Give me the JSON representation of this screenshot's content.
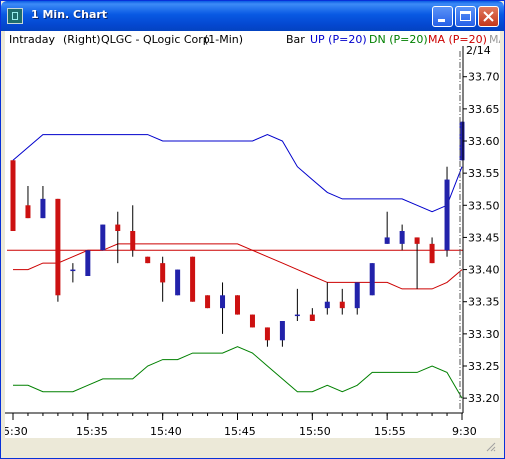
{
  "window": {
    "title": "1 Min. Chart"
  },
  "titlebar_buttons": {
    "minimize_icon": "minimize-icon",
    "maximize_icon": "maximize-icon",
    "close_icon": "close-icon"
  },
  "header": {
    "mode": "Intraday",
    "scale": "(Right)",
    "symbol_desc": "QLGC - QLogic Corp",
    "interval": "(1-Min)",
    "style": "Bar",
    "legend": [
      {
        "label": "UP (P=20)",
        "color": "#0000cc"
      },
      {
        "label": "DN (P=20)",
        "color": "#008000"
      },
      {
        "label": "MA (P=20)",
        "color": "#cc0000"
      },
      {
        "label": "MA",
        "color": "#999999"
      }
    ],
    "date_label": "2/14"
  },
  "colors": {
    "up_candle": "#2222aa",
    "down_candle": "#cc1111",
    "upper_band": "#0000cc",
    "lower_band": "#008000",
    "ma": "#cc0000",
    "ref_line": "#cc0000"
  },
  "chart_data": {
    "type": "line",
    "y_ticks": [
      "33.70",
      "33.65",
      "33.60",
      "33.55",
      "33.50",
      "33.45",
      "33.40",
      "33.35",
      "33.30",
      "33.25",
      "33.20"
    ],
    "x_ticks": [
      "5:30",
      "15:35",
      "15:40",
      "15:45",
      "15:50",
      "15:55",
      "9:30"
    ],
    "ylim": [
      33.18,
      33.74
    ],
    "ref_line": 33.43,
    "candles": [
      [
        33.57,
        33.57,
        33.46,
        33.46
      ],
      [
        33.5,
        33.53,
        33.48,
        33.48
      ],
      [
        33.48,
        33.53,
        33.48,
        33.51
      ],
      [
        33.51,
        33.51,
        33.35,
        33.36
      ],
      [
        33.4,
        33.41,
        33.38,
        33.4
      ],
      [
        33.39,
        33.43,
        33.39,
        33.43
      ],
      [
        33.43,
        33.47,
        33.43,
        33.47
      ],
      [
        33.47,
        33.49,
        33.41,
        33.46
      ],
      [
        33.46,
        33.5,
        33.42,
        33.43
      ],
      [
        33.42,
        33.42,
        33.41,
        33.41
      ],
      [
        33.41,
        33.42,
        33.35,
        33.38
      ],
      [
        33.36,
        33.4,
        33.36,
        33.4
      ],
      [
        33.42,
        33.42,
        33.35,
        33.35
      ],
      [
        33.36,
        33.36,
        33.34,
        33.34
      ],
      [
        33.34,
        33.38,
        33.3,
        33.36
      ],
      [
        33.36,
        33.36,
        33.33,
        33.33
      ],
      [
        33.33,
        33.33,
        33.31,
        33.31
      ],
      [
        33.31,
        33.31,
        33.28,
        33.29
      ],
      [
        33.29,
        33.32,
        33.28,
        33.32
      ],
      [
        33.33,
        33.37,
        33.32,
        33.33
      ],
      [
        33.33,
        33.34,
        33.32,
        33.32
      ],
      [
        33.34,
        33.38,
        33.33,
        33.35
      ],
      [
        33.35,
        33.37,
        33.33,
        33.34
      ],
      [
        33.34,
        33.38,
        33.33,
        33.38
      ],
      [
        33.36,
        33.41,
        33.36,
        33.41
      ],
      [
        33.44,
        33.49,
        33.44,
        33.45
      ],
      [
        33.44,
        33.47,
        33.43,
        33.46
      ],
      [
        33.45,
        33.45,
        33.37,
        33.44
      ],
      [
        33.44,
        33.45,
        33.41,
        33.41
      ],
      [
        33.43,
        33.56,
        33.42,
        33.54
      ],
      [
        33.57,
        33.63,
        33.57,
        33.63
      ]
    ],
    "series": [
      {
        "name": "UP (P=20)",
        "values": [
          33.57,
          33.59,
          33.61,
          33.61,
          33.61,
          33.61,
          33.61,
          33.61,
          33.61,
          33.61,
          33.6,
          33.6,
          33.6,
          33.6,
          33.6,
          33.6,
          33.6,
          33.61,
          33.6,
          33.56,
          33.54,
          33.52,
          33.51,
          33.51,
          33.51,
          33.51,
          33.51,
          33.5,
          33.49,
          33.5,
          33.56
        ]
      },
      {
        "name": "DN (P=20)",
        "values": [
          33.22,
          33.22,
          33.21,
          33.21,
          33.21,
          33.22,
          33.23,
          33.23,
          33.23,
          33.25,
          33.26,
          33.26,
          33.27,
          33.27,
          33.27,
          33.28,
          33.27,
          33.25,
          33.23,
          33.21,
          33.21,
          33.22,
          33.21,
          33.22,
          33.24,
          33.24,
          33.24,
          33.24,
          33.25,
          33.24,
          33.2
        ]
      },
      {
        "name": "MA (P=20)",
        "values": [
          33.4,
          33.4,
          33.41,
          33.41,
          33.42,
          33.43,
          33.43,
          33.44,
          33.44,
          33.44,
          33.44,
          33.44,
          33.44,
          33.44,
          33.44,
          33.44,
          33.43,
          33.42,
          33.41,
          33.4,
          33.39,
          33.38,
          33.38,
          33.38,
          33.38,
          33.38,
          33.37,
          33.37,
          33.37,
          33.38,
          33.4
        ]
      }
    ]
  }
}
